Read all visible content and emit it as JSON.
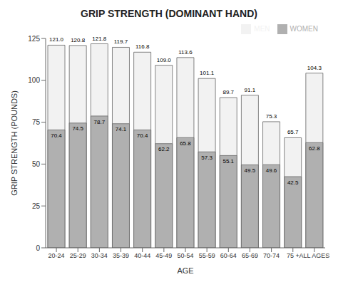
{
  "chart_data": {
    "type": "bar",
    "title": "GRIP STRENGTH (DOMINANT HAND)",
    "xlabel": "AGE",
    "ylabel": "GRIP STRENGTH (POUNDS)",
    "categories": [
      "20-24",
      "25-29",
      "30-34",
      "35-39",
      "40-44",
      "45-49",
      "50-54",
      "55-59",
      "60-64",
      "65-69",
      "70-74",
      "75 +",
      "ALL AGES"
    ],
    "series": [
      {
        "name": "MEN",
        "color": "#f2f2f2",
        "values": [
          121.0,
          120.8,
          121.8,
          119.7,
          116.8,
          109.0,
          113.6,
          101.1,
          89.7,
          91.1,
          75.3,
          65.7,
          104.3
        ],
        "value_labels": [
          "121.0",
          "120.8",
          "121.8",
          "119.7",
          "116.8",
          "109.0",
          "113.6",
          "101.1",
          "89.7",
          "91.1",
          "75.3",
          "65.7",
          "104.3"
        ]
      },
      {
        "name": "WOMEN",
        "color": "#b0b0b0",
        "values": [
          70.4,
          74.5,
          78.7,
          74.1,
          70.4,
          62.2,
          65.8,
          57.3,
          55.1,
          49.5,
          49.6,
          42.5,
          62.8
        ],
        "value_labels": [
          "70.4",
          "74.5",
          "78.7",
          "74.1",
          "70.4",
          "62.2",
          "65.8",
          "57.3",
          "55.1",
          "49.5",
          "49.6",
          "42.5",
          "62.8"
        ]
      }
    ],
    "ylim": [
      0,
      125
    ],
    "yticks": [
      0,
      25,
      50,
      75,
      100,
      125
    ],
    "grid": false,
    "legend": "upper right",
    "data_labels": true
  }
}
